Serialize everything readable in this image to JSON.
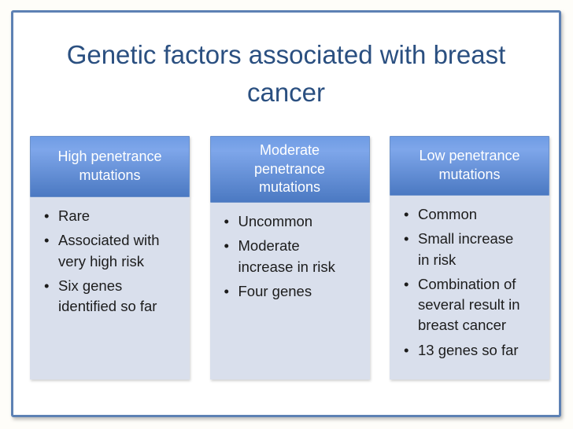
{
  "slide": {
    "title": "Genetic factors associated with breast cancer",
    "columns": [
      {
        "header": "High penetrance mutations",
        "bullets": [
          "Rare",
          "Associated with very high risk",
          "Six genes identified so far"
        ]
      },
      {
        "header": "Moderate penetrance mutations",
        "bullets": [
          "Uncommon",
          "Moderate increase in risk",
          "Four genes"
        ]
      },
      {
        "header": "Low penetrance mutations",
        "bullets": [
          "Common",
          "Small increase in risk",
          "Combination of several result in breast cancer",
          "13 genes so far"
        ]
      }
    ],
    "colors": {
      "page_bg": "#fefdf9",
      "frame_border": "#5d81b4",
      "title_text": "#2a4f80",
      "header_gradient_top": "#6f9ce4",
      "header_gradient_mid": "#7ea6ea",
      "header_gradient_bottom": "#4b79c2",
      "header_border": "#6c92cc",
      "header_text": "#ffffff",
      "body_bg": "#d9dfec",
      "body_text": "#1c1c1c"
    }
  }
}
